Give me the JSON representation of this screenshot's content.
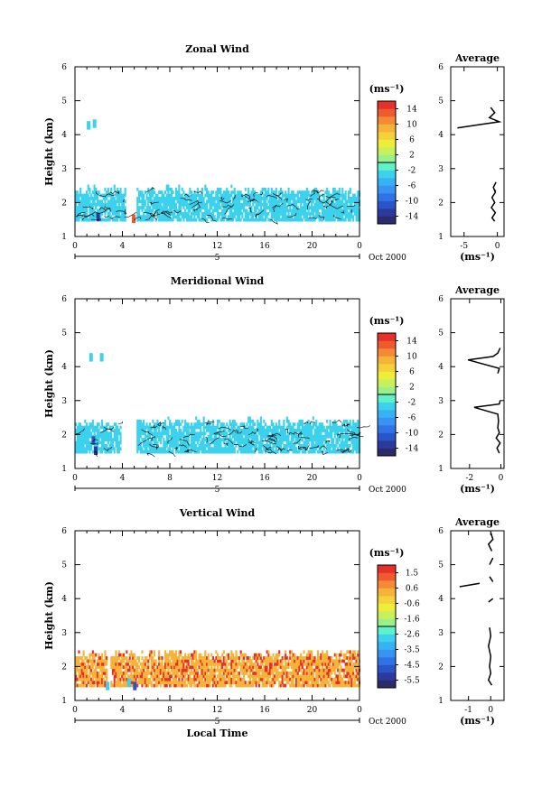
{
  "chart_data": [
    {
      "type": "heatmap",
      "title": "Zonal Wind",
      "xlabel": "",
      "ylabel": "Height (km)",
      "xlim": [
        0,
        24
      ],
      "ylim": [
        1,
        6
      ],
      "xticks": [
        "0",
        "4",
        "8",
        "12",
        "16",
        "20",
        "0"
      ],
      "yticks": [
        "1",
        "2",
        "3",
        "4",
        "5",
        "6"
      ],
      "date_bar": {
        "day_label": "5",
        "date_label": "Oct 2000"
      },
      "colorbar": {
        "unit_label": "(ms⁻¹)",
        "ticks": [
          "14",
          "10",
          "6",
          "2",
          "-2",
          "-6",
          "-10",
          "-14"
        ],
        "range": [
          -16,
          16
        ]
      },
      "cells": {
        "dominant_value": -3,
        "dominant_color": "#5ff2c8",
        "band_km": [
          1.45,
          2.45
        ],
        "time_coverage_h": [
          0,
          24
        ],
        "data_gap_h": [
          4.2,
          5.1
        ],
        "isolated_cells": [
          {
            "t": 1.0,
            "h": 4.3,
            "value": -3
          },
          {
            "t": 1.5,
            "h": 4.35,
            "value": -3
          },
          {
            "t": 1.8,
            "h": 1.6,
            "value": -13
          },
          {
            "t": 4.8,
            "h": 1.55,
            "value": 12
          }
        ]
      },
      "profile": {
        "title": "Average",
        "xlabel": "(ms⁻¹)",
        "xlim": [
          -7,
          1
        ],
        "ylim": [
          1,
          6
        ],
        "xticks": [
          "-5",
          "0"
        ],
        "yticks": [
          "1",
          "2",
          "3",
          "4",
          "5",
          "6"
        ],
        "points": [
          [
            -0.4,
            1.45
          ],
          [
            -0.8,
            1.55
          ],
          [
            -0.3,
            1.7
          ],
          [
            -0.9,
            1.85
          ],
          [
            -0.4,
            2.0
          ],
          [
            -0.8,
            2.15
          ],
          [
            -0.3,
            2.3
          ],
          [
            -0.6,
            2.45
          ],
          [
            -0.2,
            2.6
          ],
          null,
          [
            -0.5,
            2.35
          ],
          [
            -0.2,
            2.35
          ],
          null,
          [
            -6.0,
            4.2
          ],
          [
            -2.5,
            4.3
          ],
          [
            0.3,
            4.38
          ],
          [
            -1.2,
            4.5
          ],
          [
            -0.4,
            4.65
          ],
          [
            -1.0,
            4.8
          ]
        ]
      }
    },
    {
      "type": "heatmap",
      "title": "Meridional Wind",
      "xlabel": "",
      "ylabel": "Height (km)",
      "xlim": [
        0,
        24
      ],
      "ylim": [
        1,
        6
      ],
      "xticks": [
        "0",
        "4",
        "8",
        "12",
        "16",
        "20",
        "0"
      ],
      "yticks": [
        "1",
        "2",
        "3",
        "4",
        "5",
        "6"
      ],
      "date_bar": {
        "day_label": "5",
        "date_label": "Oct 2000"
      },
      "colorbar": {
        "unit_label": "(ms⁻¹)",
        "ticks": [
          "14",
          "10",
          "6",
          "2",
          "-2",
          "-6",
          "-10",
          "-14"
        ],
        "range": [
          -16,
          16
        ]
      },
      "cells": {
        "dominant_value": -3,
        "dominant_color": "#5ff2c8",
        "band_km": [
          1.45,
          2.45
        ],
        "time_coverage_h": [
          0,
          24
        ],
        "data_gap_h": [
          3.8,
          5.1
        ],
        "isolated_cells": [
          {
            "t": 1.2,
            "h": 4.3,
            "value": -4
          },
          {
            "t": 2.1,
            "h": 4.3,
            "value": -4
          },
          {
            "t": 1.4,
            "h": 1.85,
            "value": -11
          },
          {
            "t": 1.6,
            "h": 1.55,
            "value": -13
          }
        ]
      },
      "profile": {
        "title": "Average",
        "xlabel": "(ms⁻¹)",
        "xlim": [
          -3.2,
          0.2
        ],
        "ylim": [
          1,
          6
        ],
        "xticks": [
          "-2",
          "0"
        ],
        "yticks": [
          "1",
          "2",
          "3",
          "4",
          "5",
          "6"
        ],
        "points": [
          [
            -0.1,
            1.45
          ],
          [
            -0.25,
            1.6
          ],
          [
            -0.05,
            1.75
          ],
          [
            -0.3,
            1.9
          ],
          [
            -0.1,
            2.05
          ],
          [
            -0.2,
            2.2
          ],
          [
            -0.15,
            2.4
          ],
          [
            -0.2,
            2.6
          ],
          [
            -1.7,
            2.8
          ],
          [
            -0.1,
            2.9
          ],
          [
            -0.05,
            3.0
          ],
          null,
          [
            -0.2,
            3.8
          ],
          [
            -0.1,
            3.95
          ],
          [
            -2.1,
            4.2
          ],
          [
            -0.5,
            4.3
          ],
          [
            -0.2,
            4.4
          ],
          [
            -0.05,
            4.55
          ]
        ]
      }
    },
    {
      "type": "heatmap",
      "title": "Vertical Wind",
      "xlabel": "Local Time",
      "ylabel": "Height (km)",
      "xlim": [
        0,
        24
      ],
      "ylim": [
        1,
        6
      ],
      "xticks": [
        "0",
        "4",
        "8",
        "12",
        "16",
        "20",
        "0"
      ],
      "yticks": [
        "1",
        "2",
        "3",
        "4",
        "5",
        "6"
      ],
      "date_bar": {
        "day_label": "5",
        "date_label": "Oct 2000"
      },
      "colorbar": {
        "unit_label": "(ms⁻¹)",
        "ticks": [
          "1.5",
          "0.6",
          "-0.6",
          "-1.6",
          "-2.6",
          "-3.5",
          "-4.5",
          "-5.5"
        ],
        "range": [
          -6.0,
          2.0
        ]
      },
      "cells": {
        "dominant_value": 0.4,
        "dominant_color": "#f5c542",
        "band_km": [
          1.4,
          2.45
        ],
        "time_coverage_h": [
          0,
          24
        ],
        "data_gap_h": [
          2.6,
          2.9
        ],
        "isolated_cells": [
          {
            "t": 2.6,
            "h": 1.45,
            "value": -3.0
          },
          {
            "t": 4.4,
            "h": 1.55,
            "value": -2.6
          },
          {
            "t": 4.9,
            "h": 1.45,
            "value": -5.0
          }
        ]
      },
      "profile": {
        "title": "Average",
        "xlabel": "(ms⁻¹)",
        "xlim": [
          -1.8,
          0.6
        ],
        "ylim": [
          1,
          6
        ],
        "xticks": [
          "-1",
          "0"
        ],
        "yticks": [
          "1",
          "2",
          "3",
          "4",
          "5",
          "6"
        ],
        "points": [
          [
            0.05,
            1.45
          ],
          [
            -0.1,
            1.6
          ],
          [
            0.0,
            1.8
          ],
          [
            -0.05,
            2.0
          ],
          [
            0.0,
            2.3
          ],
          [
            -0.1,
            2.6
          ],
          [
            0.0,
            2.9
          ],
          [
            -0.05,
            3.15
          ],
          null,
          [
            -0.1,
            3.9
          ],
          [
            0.1,
            4.0
          ],
          null,
          [
            -1.4,
            4.35
          ],
          [
            -0.5,
            4.45
          ],
          null,
          [
            0.1,
            4.5
          ],
          [
            -0.05,
            4.65
          ],
          null,
          [
            -0.05,
            5.0
          ],
          [
            0.1,
            5.2
          ],
          null,
          [
            0.05,
            5.4
          ],
          [
            -0.1,
            5.6
          ],
          [
            0.1,
            5.75
          ],
          [
            0.0,
            5.95
          ]
        ]
      }
    }
  ]
}
